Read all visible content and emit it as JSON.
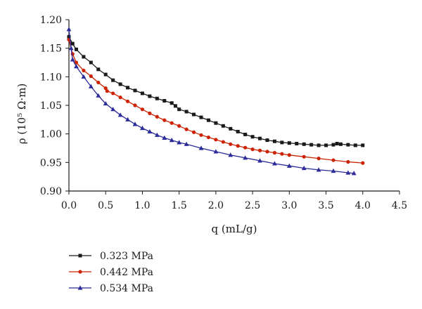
{
  "chart_data": {
    "type": "line",
    "xlabel": "q (mL/g)",
    "ylabel": "ρ (10⁵ Ω·m)",
    "xlim": [
      0.0,
      4.5
    ],
    "ylim": [
      0.9,
      1.2
    ],
    "x_ticks": [
      "0.0",
      "0.5",
      "1.0",
      "1.5",
      "2.0",
      "2.5",
      "3.0",
      "3.5",
      "4.0",
      "4.5"
    ],
    "y_ticks": [
      "0.90",
      "0.95",
      "1.00",
      "1.05",
      "1.10",
      "1.15",
      "1.20"
    ],
    "grid": false,
    "legend_position": "bottom-left",
    "series": [
      {
        "name": "0.323 MPa",
        "color": "#1a1a1a",
        "marker": "square",
        "x": [
          0.0,
          0.05,
          0.1,
          0.2,
          0.3,
          0.4,
          0.5,
          0.6,
          0.7,
          0.8,
          0.9,
          1.0,
          1.1,
          1.2,
          1.3,
          1.4,
          1.45,
          1.5,
          1.6,
          1.7,
          1.8,
          1.9,
          2.0,
          2.1,
          2.2,
          2.3,
          2.4,
          2.5,
          2.6,
          2.7,
          2.8,
          2.9,
          3.0,
          3.1,
          3.2,
          3.3,
          3.4,
          3.5,
          3.6,
          3.65,
          3.7,
          3.8,
          3.9,
          4.0
        ],
        "y": [
          1.17,
          1.158,
          1.148,
          1.135,
          1.125,
          1.113,
          1.104,
          1.094,
          1.087,
          1.081,
          1.076,
          1.071,
          1.066,
          1.062,
          1.058,
          1.054,
          1.049,
          1.043,
          1.039,
          1.034,
          1.029,
          1.024,
          1.019,
          1.014,
          1.009,
          1.004,
          0.999,
          0.995,
          0.992,
          0.989,
          0.987,
          0.985,
          0.984,
          0.983,
          0.982,
          0.981,
          0.98,
          0.98,
          0.981,
          0.983,
          0.982,
          0.981,
          0.98,
          0.98
        ]
      },
      {
        "name": "0.442 MPa",
        "color": "#cc2200",
        "marker": "circle",
        "x": [
          0.0,
          0.05,
          0.1,
          0.2,
          0.3,
          0.4,
          0.5,
          0.52,
          0.6,
          0.7,
          0.8,
          0.9,
          1.0,
          1.1,
          1.2,
          1.3,
          1.4,
          1.5,
          1.6,
          1.7,
          1.8,
          1.9,
          2.0,
          2.1,
          2.2,
          2.3,
          2.4,
          2.5,
          2.6,
          2.7,
          2.8,
          2.9,
          3.0,
          3.2,
          3.4,
          3.6,
          3.8,
          4.0
        ],
        "y": [
          1.165,
          1.14,
          1.125,
          1.111,
          1.101,
          1.09,
          1.08,
          1.075,
          1.071,
          1.064,
          1.057,
          1.05,
          1.043,
          1.036,
          1.03,
          1.024,
          1.019,
          1.014,
          1.008,
          1.003,
          0.998,
          0.994,
          0.99,
          0.986,
          0.982,
          0.979,
          0.976,
          0.973,
          0.971,
          0.969,
          0.967,
          0.965,
          0.963,
          0.96,
          0.957,
          0.954,
          0.951,
          0.949
        ]
      },
      {
        "name": "0.534 MPa",
        "color": "#2b2b99",
        "marker": "triangle",
        "x": [
          0.0,
          0.03,
          0.05,
          0.1,
          0.2,
          0.3,
          0.4,
          0.5,
          0.6,
          0.7,
          0.8,
          0.9,
          1.0,
          1.1,
          1.2,
          1.3,
          1.4,
          1.5,
          1.6,
          1.8,
          2.0,
          2.2,
          2.4,
          2.6,
          2.8,
          3.0,
          3.2,
          3.4,
          3.6,
          3.8,
          3.88
        ],
        "y": [
          1.183,
          1.15,
          1.13,
          1.118,
          1.1,
          1.083,
          1.067,
          1.053,
          1.043,
          1.033,
          1.025,
          1.017,
          1.01,
          1.004,
          0.998,
          0.993,
          0.989,
          0.985,
          0.982,
          0.975,
          0.969,
          0.963,
          0.958,
          0.953,
          0.948,
          0.944,
          0.94,
          0.937,
          0.935,
          0.932,
          0.931
        ]
      }
    ]
  }
}
